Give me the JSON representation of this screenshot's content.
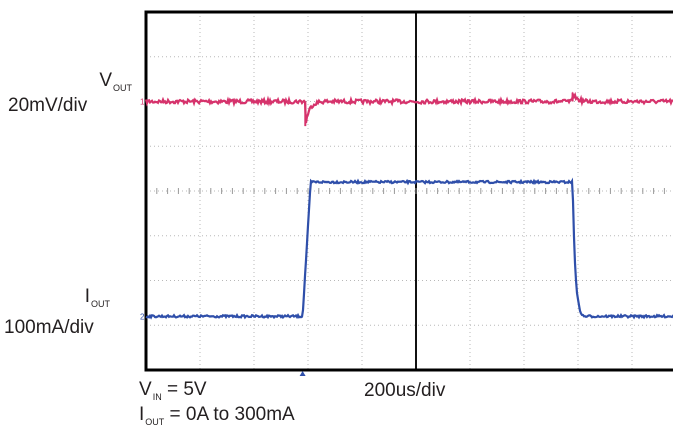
{
  "chart_data": {
    "type": "line",
    "title": "",
    "grid": true,
    "x_divisions": 10,
    "y_divisions": 8,
    "channels": [
      {
        "name": "VOUT",
        "label_main": "V",
        "label_sub": "OUT",
        "scale": "20mV/div",
        "color": "#d6336c",
        "marker": "1",
        "baseline_div": 2.0,
        "events": [
          {
            "x_div": 2.95,
            "type": "undershoot",
            "amplitude_div": 0.55
          },
          {
            "x_div": 7.9,
            "type": "overshoot",
            "amplitude_div": 0.2
          }
        ]
      },
      {
        "name": "IOUT",
        "label_main": "I",
        "label_sub": "OUT",
        "scale": "100mA/div",
        "color": "#2f4faa",
        "marker": "2",
        "low_level_div": 6.8,
        "high_level_div": 3.8,
        "rise_start_div": 2.9,
        "rise_end_div": 3.05,
        "fall_start_div": 7.9,
        "fall_end_div": 8.1
      }
    ],
    "timebase": "200us/div",
    "conditions": [
      {
        "main": "V",
        "sub": "IN",
        "text": " = 5V"
      },
      {
        "main": "I",
        "sub": "OUT",
        "text": " = 0A to 300mA"
      }
    ]
  }
}
